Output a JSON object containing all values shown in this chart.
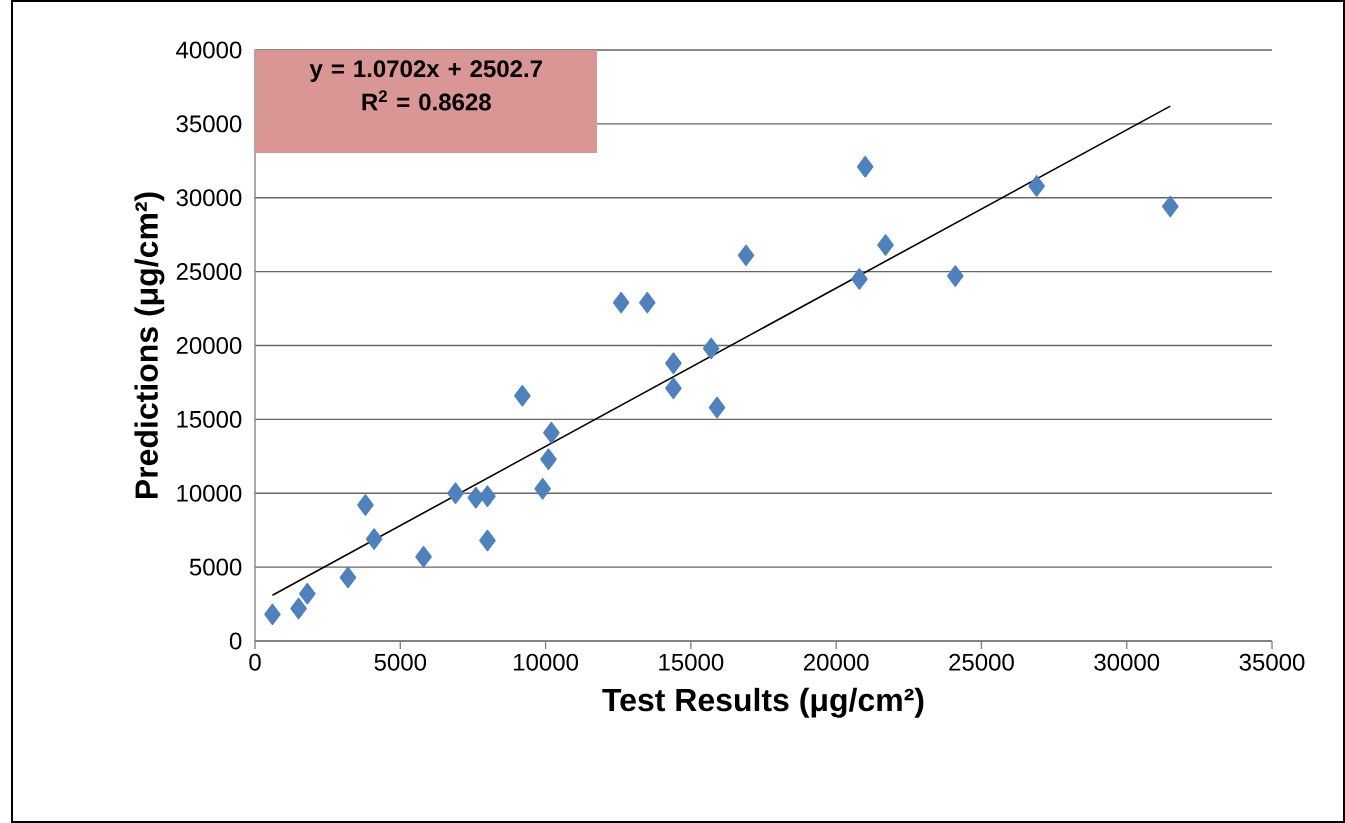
{
  "chart_data": {
    "type": "scatter",
    "xlabel": "Test Results (μg/cm²)",
    "ylabel": "Predictions (μg/cm²)",
    "xlim": [
      0,
      35000
    ],
    "ylim": [
      0,
      40000
    ],
    "xticks": [
      0,
      5000,
      10000,
      15000,
      20000,
      25000,
      30000,
      35000
    ],
    "yticks": [
      0,
      5000,
      10000,
      15000,
      20000,
      25000,
      30000,
      35000,
      40000
    ],
    "grid": "y",
    "marker": "diamond",
    "annotations": [
      "y = 1.0702x + 2502.7",
      "R$^{2}$ = 0.8628"
    ],
    "series": [
      {
        "color": "#4f81bd",
        "x": [
          600,
          1500,
          1800,
          3200,
          3800,
          4100,
          5800,
          6900,
          7600,
          8000,
          8000,
          9200,
          9900,
          10100,
          10200,
          12600,
          13500,
          14400,
          14400,
          15700,
          15900,
          16900,
          20800,
          21000,
          21700,
          24100,
          26900,
          31500
        ],
        "values": [
          1800,
          2200,
          3200,
          4300,
          9200,
          6900,
          5700,
          10000,
          9700,
          9800,
          6800,
          16600,
          10300,
          12300,
          14100,
          22900,
          22900,
          18800,
          17100,
          19800,
          15800,
          26100,
          24500,
          32100,
          26800,
          24700,
          30800,
          29400
        ]
      },
      {
        "type": "line",
        "color": "#000000",
        "marker": "none",
        "x": [
          600,
          31500
        ],
        "values": [
          3100,
          36200
        ]
      }
    ]
  }
}
